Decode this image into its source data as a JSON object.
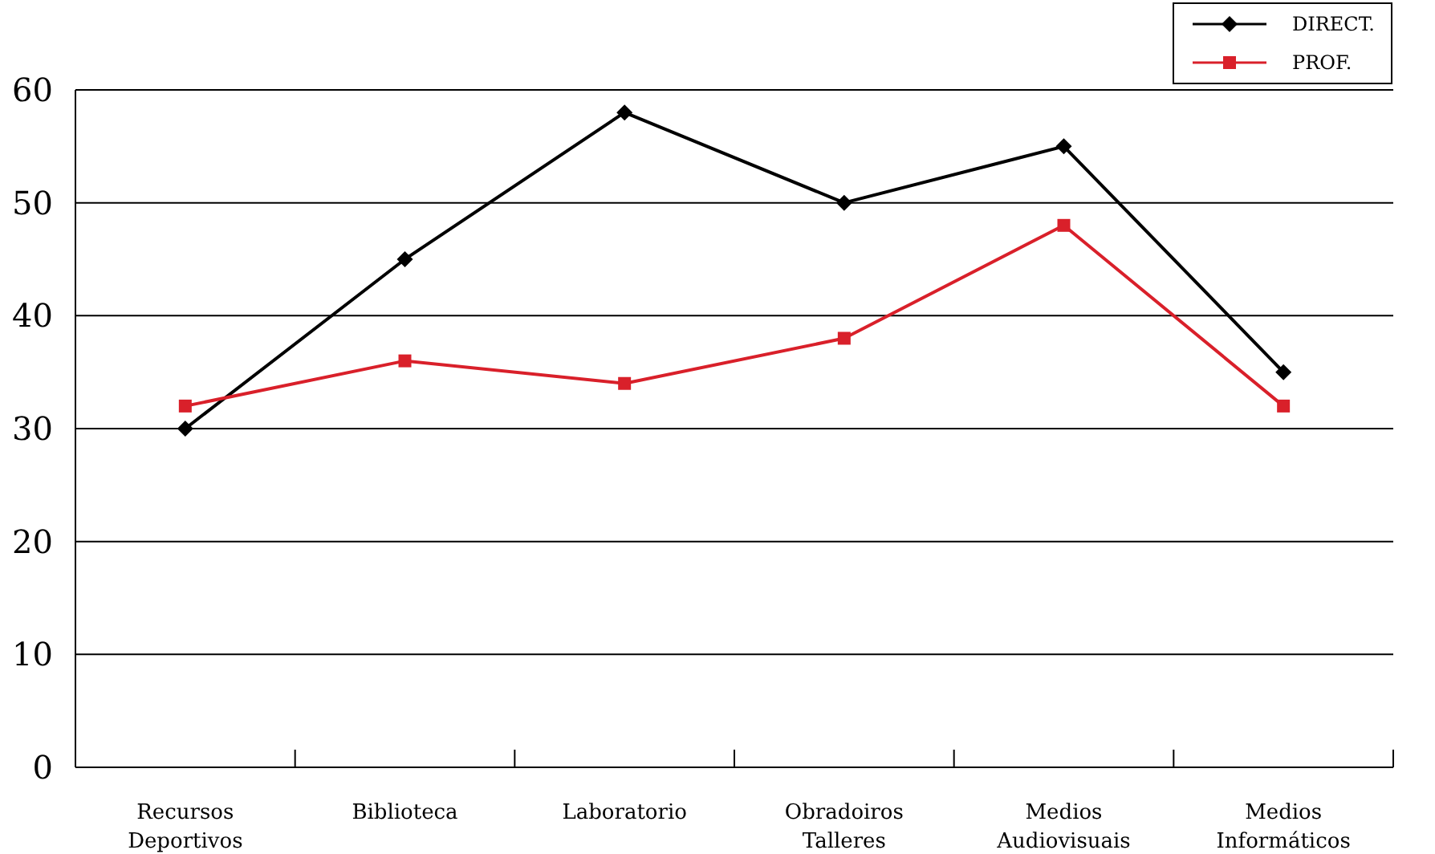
{
  "chart_data": {
    "type": "line",
    "categories": [
      "Recursos Deportivos",
      "Biblioteca",
      "Laboratorio",
      "Obradoiros Talleres",
      "Medios Audiovisuais",
      "Medios Informáticos"
    ],
    "series": [
      {
        "name": "DIRECT.",
        "color": "#000000",
        "values": [
          30,
          45,
          58,
          50,
          55,
          35
        ],
        "marker": "diamond"
      },
      {
        "name": "PROF.",
        "color": "#d9202a",
        "values": [
          32,
          36,
          34,
          38,
          48,
          32
        ],
        "marker": "square"
      }
    ],
    "ylim": [
      0,
      60
    ],
    "yticks": [
      0,
      10,
      20,
      30,
      40,
      50,
      60
    ],
    "grid": "y",
    "legend": "top right",
    "line_style": "solid"
  }
}
